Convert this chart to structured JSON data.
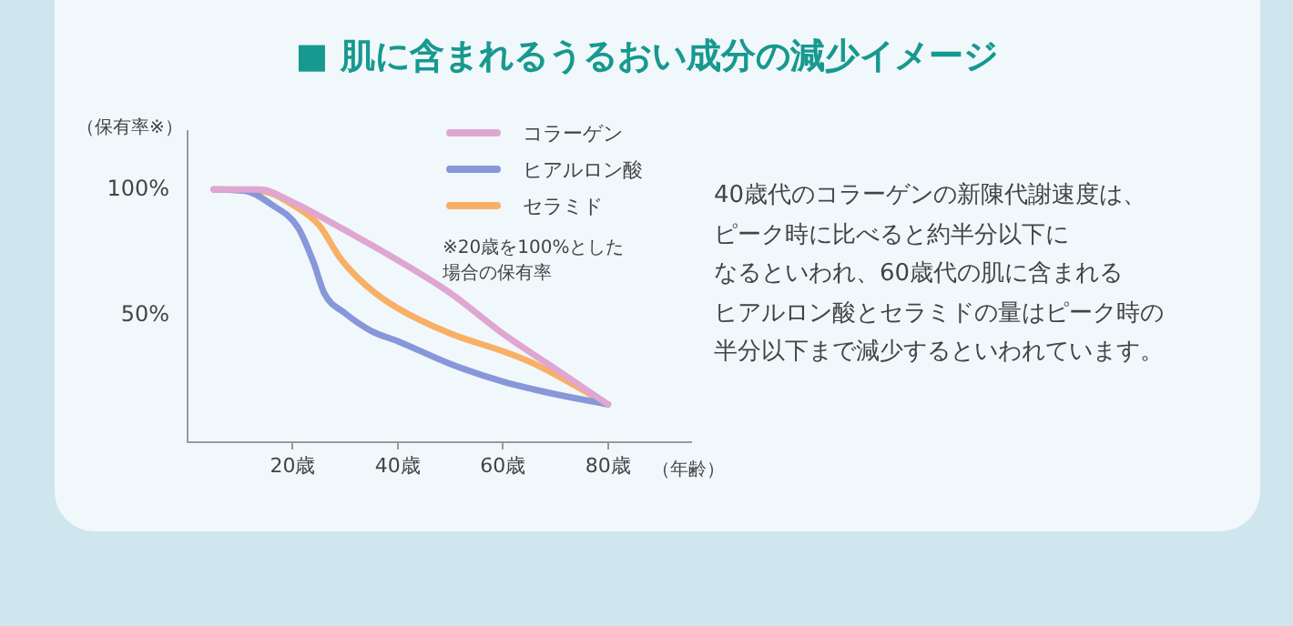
{
  "chart_data": {
    "type": "line",
    "title": "■ 肌に含まれるうるおい成分の減少イメージ",
    "ylabel": "（保有率※）",
    "xlabel": "（年齢）",
    "xlim": [
      0,
      96
    ],
    "ylim": [
      0,
      123
    ],
    "xticks": [
      {
        "value": 20,
        "label": "20歳"
      },
      {
        "value": 40,
        "label": "40歳"
      },
      {
        "value": 60,
        "label": "60歳"
      },
      {
        "value": 80,
        "label": "80歳"
      }
    ],
    "yticks": [
      {
        "value": 50,
        "label": "50%"
      },
      {
        "value": 100,
        "label": "100%"
      }
    ],
    "grid": false,
    "legend": "top right",
    "marker": "none",
    "line_style": "solid",
    "series": [
      {
        "name": "コラーゲン",
        "color": "#e0a6d2",
        "x": [
          5,
          13.75,
          20,
          29,
          40,
          50,
          60,
          70,
          80
        ],
        "values": [
          100,
          100,
          95,
          85,
          72,
          59,
          43,
          29,
          15
        ]
      },
      {
        "name": "ヒアルロン酸",
        "color": "#8797d9",
        "x": [
          5,
          11,
          16,
          21,
          24,
          26,
          30,
          35,
          40,
          50,
          60,
          70,
          80
        ],
        "values": [
          100,
          99.5,
          94,
          85,
          71,
          59,
          51,
          44,
          40,
          31,
          24,
          19,
          15
        ]
      },
      {
        "name": "セラミド",
        "color": "#f7b066",
        "x": [
          5,
          14,
          20,
          25,
          29,
          34,
          40,
          50,
          60,
          66,
          80
        ],
        "values": [
          100,
          99.5,
          94,
          86,
          73,
          62,
          53,
          43,
          36,
          31,
          15
        ]
      }
    ],
    "annotations": [
      "※20歳を100%とした",
      "場合の保有率",
      "40歳代のコラーゲンの新陳代謝速度は、",
      "ピーク時に比べると約半分以下に",
      "なるといわれ、60歳代の肌に含まれる",
      "ヒアルロン酸とセラミドの量はピーク時の",
      "半分以下まで減少するといわれています。"
    ]
  }
}
